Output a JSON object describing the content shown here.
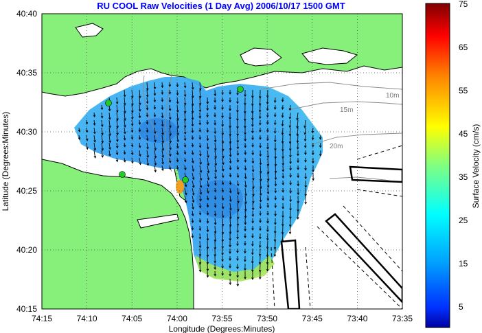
{
  "title": "RU COOL Raw Velocities (1 Day Avg) 2006/10/17 1500 GMT",
  "x_axis": {
    "label": "Longitude (Degrees:Minutes)",
    "ticks": [
      "74:15",
      "74:10",
      "74:05",
      "74:00",
      "73:55",
      "73:50",
      "73:45",
      "73:40",
      "73:35"
    ]
  },
  "y_axis": {
    "label": "Latitude (Degrees:Minutes)",
    "ticks": [
      "40:40",
      "40:35",
      "40:30",
      "40:25",
      "40:20",
      "40:15"
    ]
  },
  "colorbar": {
    "label": "Surface Velocity (cm/s)",
    "ticks": [
      "75",
      "65",
      "55",
      "45",
      "35",
      "25",
      "15",
      "5"
    ]
  },
  "isobaths": [
    "10m",
    "15m",
    "20m"
  ],
  "colors": {
    "land": "#86f07a",
    "title": "#0000ff",
    "field_main": "#38a8f2",
    "field_slow": "#2a8ae6",
    "field_fast": "#9fe050",
    "stations": "#22cc22"
  }
}
